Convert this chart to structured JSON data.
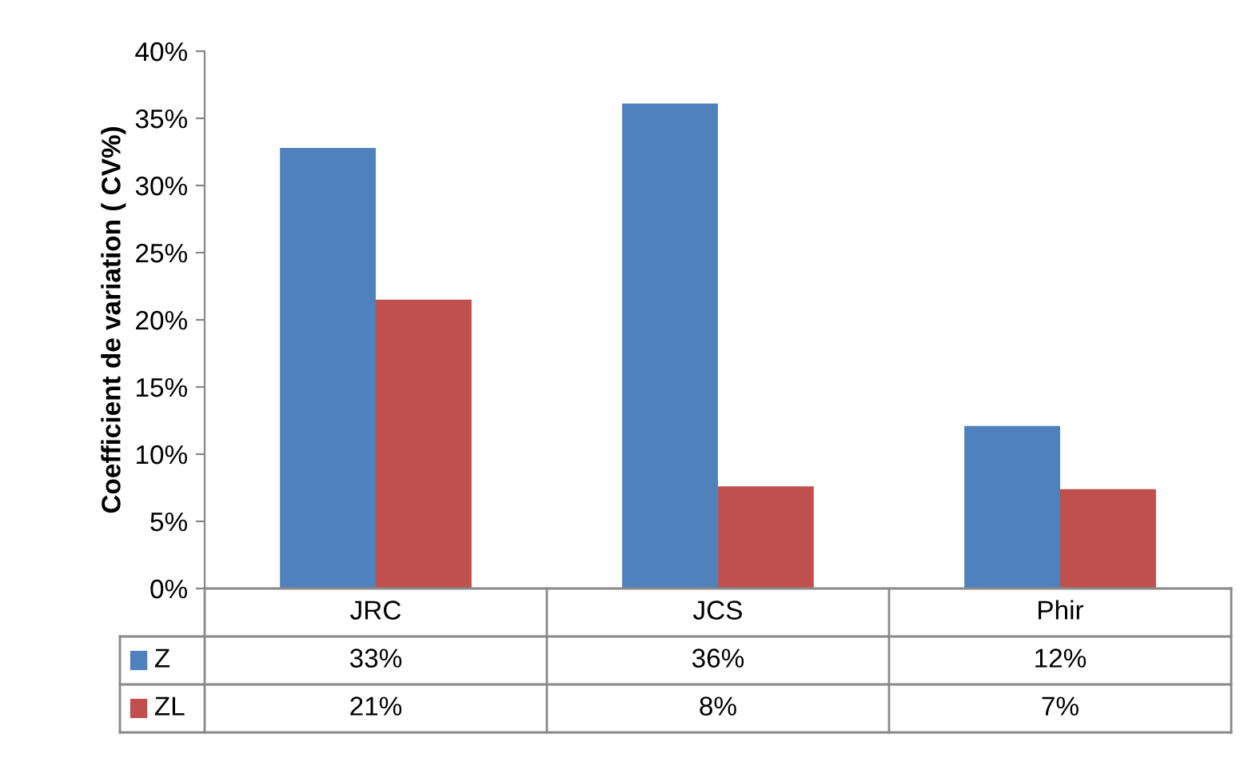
{
  "chart_data": {
    "type": "bar",
    "ylabel": "Coefficient de variation ( CV%)",
    "categories": [
      "JRC",
      "JCS",
      "Phir"
    ],
    "series": [
      {
        "name": "Z",
        "color": "#4f81bd",
        "values": [
          32.8,
          36.1,
          12.1
        ],
        "value_labels": [
          "33%",
          "36%",
          "12%"
        ]
      },
      {
        "name": "ZL",
        "color": "#c0504d",
        "values": [
          21.5,
          7.6,
          7.4
        ],
        "value_labels": [
          "21%",
          "8%",
          "7%"
        ]
      }
    ],
    "ylim": [
      0,
      40
    ],
    "yticks": [
      {
        "value": 0,
        "label": "0%"
      },
      {
        "value": 5,
        "label": "5%"
      },
      {
        "value": 10,
        "label": "10%"
      },
      {
        "value": 15,
        "label": "15%"
      },
      {
        "value": 20,
        "label": "20%"
      },
      {
        "value": 25,
        "label": "25%"
      },
      {
        "value": 30,
        "label": "30%"
      },
      {
        "value": 35,
        "label": "35%"
      },
      {
        "value": 40,
        "label": "40%"
      }
    ],
    "grid": false,
    "legend": "bottom"
  }
}
